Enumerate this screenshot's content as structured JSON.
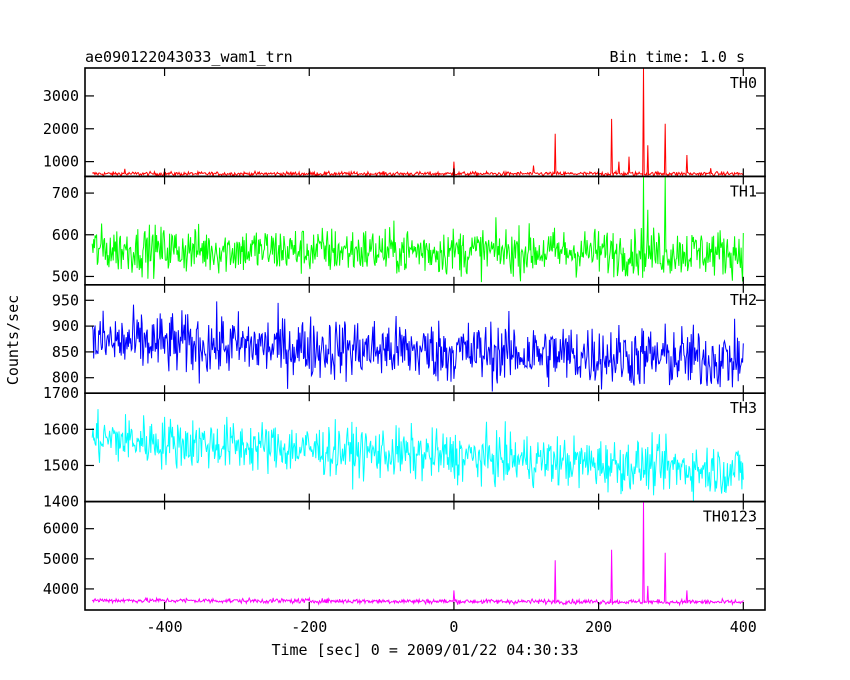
{
  "chart_data": {
    "type": "line",
    "title": "ae090122043033_wam1_trn",
    "subtitle": "Bin time: 1.0 s",
    "xlabel": "Time [sec] 0 = 2009/01/22 04:30:33",
    "ylabel": "Counts/sec",
    "xlim": [
      -510,
      430
    ],
    "xticks": [
      -400,
      -200,
      0,
      200,
      400
    ],
    "grid": false,
    "panels": [
      {
        "name": "TH0",
        "color": "#ff0000",
        "ylim": [
          550,
          3850
        ],
        "yticks": [
          1000,
          2000,
          3000
        ],
        "baseline": 630,
        "noise": 30,
        "trend": 0,
        "spikes": [
          [
            -455,
            780
          ],
          [
            0,
            1000
          ],
          [
            110,
            880
          ],
          [
            140,
            1850
          ],
          [
            218,
            2300
          ],
          [
            228,
            1000
          ],
          [
            242,
            1150
          ],
          [
            262,
            3850
          ],
          [
            268,
            1500
          ],
          [
            292,
            2150
          ],
          [
            322,
            1200
          ],
          [
            355,
            800
          ]
        ]
      },
      {
        "name": "TH1",
        "color": "#00ff00",
        "ylim": [
          480,
          740
        ],
        "yticks": [
          500,
          600,
          700
        ],
        "baseline": 565,
        "noise": 28,
        "trend": -8,
        "spikes": [
          [
            262,
            740
          ],
          [
            292,
            740
          ],
          [
            268,
            660
          ]
        ]
      },
      {
        "name": "TH2",
        "color": "#0000ff",
        "ylim": [
          770,
          980
        ],
        "yticks": [
          800,
          850,
          900,
          950
        ],
        "baseline": 870,
        "noise": 30,
        "trend": -35,
        "spikes": []
      },
      {
        "name": "TH3",
        "color": "#00ffff",
        "ylim": [
          1400,
          1700
        ],
        "yticks": [
          1400,
          1500,
          1600,
          1700
        ],
        "baseline": 1575,
        "noise": 35,
        "trend": -90,
        "spikes": []
      },
      {
        "name": "TH0123",
        "color": "#ff00ff",
        "ylim": [
          3300,
          6900
        ],
        "yticks": [
          4000,
          5000,
          6000
        ],
        "baseline": 3620,
        "noise": 40,
        "trend": -60,
        "spikes": [
          [
            140,
            4950
          ],
          [
            218,
            5300
          ],
          [
            262,
            6900
          ],
          [
            268,
            4100
          ],
          [
            292,
            5200
          ],
          [
            322,
            3950
          ],
          [
            0,
            3950
          ]
        ]
      }
    ]
  }
}
